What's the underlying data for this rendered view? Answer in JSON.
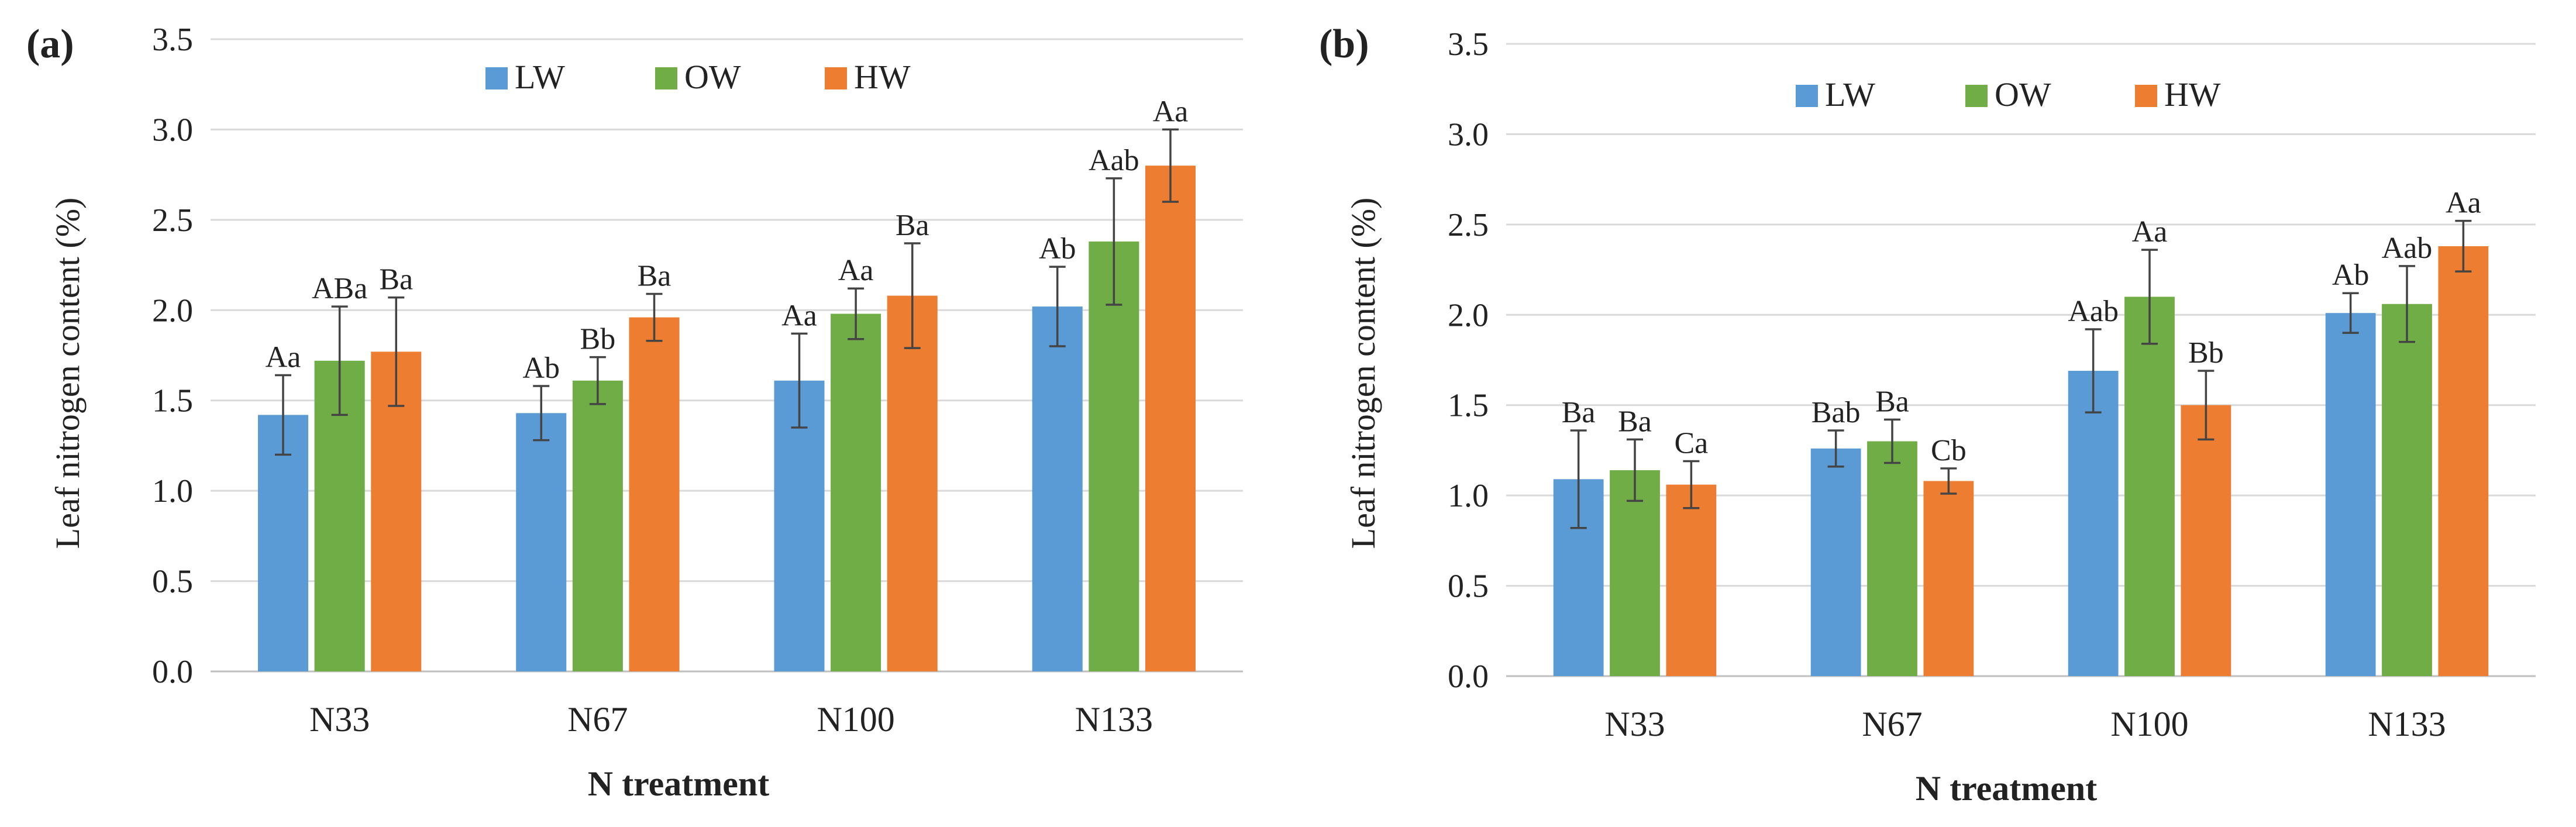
{
  "colors": {
    "LW": "#5b9bd5",
    "OW": "#70ad47",
    "HW": "#ed7d31",
    "grid": "#d9d9d9",
    "axis": "#bfbfbf",
    "error": "#444444"
  },
  "chart_data": [
    {
      "panel": "(a)",
      "type": "bar",
      "categories": [
        "N33",
        "N67",
        "N100",
        "N133"
      ],
      "xlabel": "N treatment",
      "ylabel": "Leaf nitrogen content (%)",
      "ylim": [
        0,
        3.5
      ],
      "yticks": [
        "0.0",
        "0.5",
        "1.0",
        "1.5",
        "2.0",
        "2.5",
        "3.0",
        "3.5"
      ],
      "grid": true,
      "legend": "top-center",
      "series": [
        {
          "name": "LW",
          "values": [
            1.42,
            1.43,
            1.61,
            2.02
          ],
          "errors": [
            0.22,
            0.15,
            0.26,
            0.22
          ],
          "labels": [
            "Aa",
            "Ab",
            "Aa",
            "Ab"
          ]
        },
        {
          "name": "OW",
          "values": [
            1.72,
            1.61,
            1.98,
            2.38
          ],
          "errors": [
            0.3,
            0.13,
            0.14,
            0.35
          ],
          "labels": [
            "ABa",
            "Bb",
            "Aa",
            "Aab"
          ]
        },
        {
          "name": "HW",
          "values": [
            1.77,
            1.96,
            2.08,
            2.8
          ],
          "errors": [
            0.3,
            0.13,
            0.29,
            0.2
          ],
          "labels": [
            "Ba",
            "Ba",
            "Ba",
            "Aa"
          ]
        }
      ]
    },
    {
      "panel": "(b)",
      "type": "bar",
      "categories": [
        "N33",
        "N67",
        "N100",
        "N133"
      ],
      "xlabel": "N treatment",
      "ylabel": "Leaf nitrogen content (%)",
      "ylim": [
        0,
        3.5
      ],
      "yticks": [
        "0.0",
        "0.5",
        "1.0",
        "1.5",
        "2.0",
        "2.5",
        "3.0",
        "3.5"
      ],
      "grid": true,
      "legend": "top-center",
      "series": [
        {
          "name": "LW",
          "values": [
            1.09,
            1.26,
            1.69,
            2.01
          ],
          "errors": [
            0.27,
            0.1,
            0.23,
            0.11
          ],
          "labels": [
            "Ba",
            "Bab",
            "Aab",
            "Ab"
          ]
        },
        {
          "name": "OW",
          "values": [
            1.14,
            1.3,
            2.1,
            2.06
          ],
          "errors": [
            0.17,
            0.12,
            0.26,
            0.21
          ],
          "labels": [
            "Ba",
            "Ba",
            "Aa",
            "Aab"
          ]
        },
        {
          "name": "HW",
          "values": [
            1.06,
            1.08,
            1.5,
            2.38
          ],
          "errors": [
            0.13,
            0.07,
            0.19,
            0.14
          ],
          "labels": [
            "Ca",
            "Cb",
            "Bb",
            "Aa"
          ]
        }
      ]
    }
  ]
}
